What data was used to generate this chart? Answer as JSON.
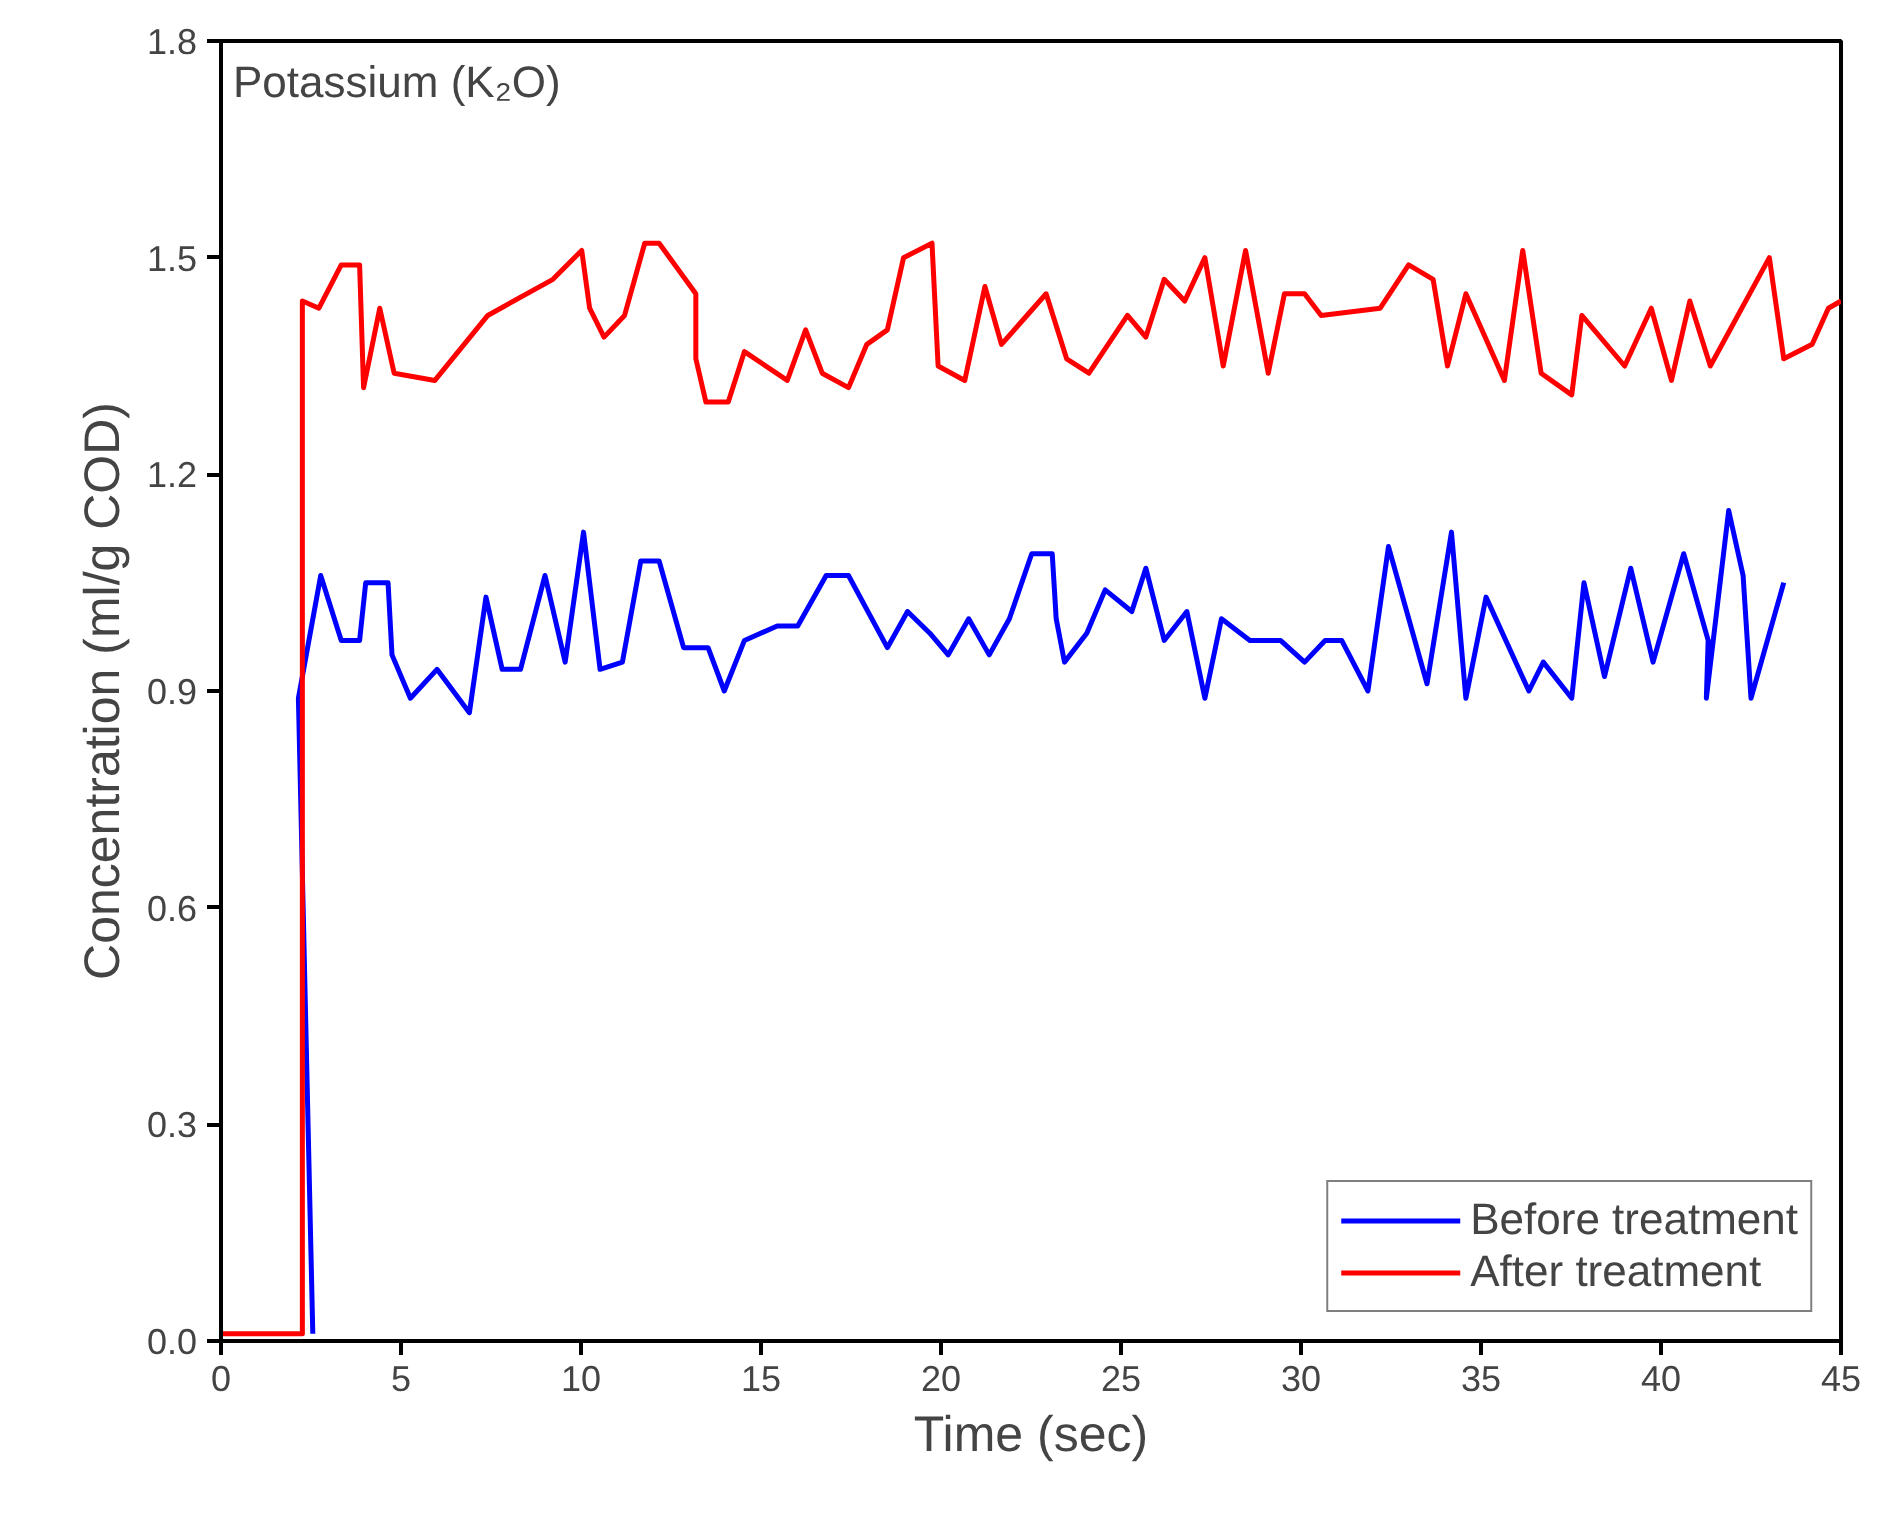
{
  "chart_data": {
    "type": "line",
    "title": "Potassium (K₂O)",
    "xlabel": "Time (sec)",
    "ylabel": "Concentration (ml/g COD)",
    "xlim": [
      0,
      45
    ],
    "xticks": [
      0,
      5,
      10,
      15,
      20,
      25,
      30,
      35,
      40,
      45
    ],
    "ylim": [
      0,
      1.8
    ],
    "yticks": [
      {
        "value": 0,
        "label": "0.0"
      },
      {
        "value": 0.3,
        "label": "0.3"
      },
      {
        "value": 0.6,
        "label": "0.6"
      },
      {
        "value": 0.9,
        "label": "0.9"
      },
      {
        "value": 1.2,
        "label": "1.2"
      },
      {
        "value": 1.5,
        "label": "1.5"
      },
      {
        "value": 1.8,
        "label": "1.8"
      }
    ],
    "grid": false,
    "legend": "bottom right",
    "line_style": "solid",
    "series": [
      {
        "name": "Before treatment",
        "color": "#0000ff",
        "x": [
          2.55,
          2.15,
          2.77,
          3.34,
          3.85,
          4.02,
          4.64,
          4.75,
          5.26,
          6.0,
          6.9,
          7.36,
          7.81,
          8.32,
          9.0,
          9.56,
          10.07,
          10.53,
          11.15,
          11.66,
          12.17,
          12.85,
          13.53,
          13.98,
          14.54,
          15.45,
          16.02,
          16.81,
          17.43,
          18.51,
          19.07,
          19.69,
          20.2,
          20.77,
          21.34,
          21.9,
          22.52,
          23.09,
          23.2,
          23.43,
          24.05,
          24.56,
          25.3,
          25.69,
          26.2,
          26.83,
          27.33,
          27.79,
          28.58,
          29.43,
          30.1,
          30.67,
          31.13,
          31.86,
          32.43,
          33.5,
          34.18,
          34.58,
          35.14,
          36.33,
          36.73,
          37.52,
          37.86,
          38.43,
          39.16,
          39.78,
          40.63,
          41.31,
          41.26,
          41.88,
          42.28,
          42.5,
          43.41
        ],
        "values": [
          0.01,
          0.89,
          1.06,
          0.97,
          0.97,
          1.05,
          1.05,
          0.95,
          0.89,
          0.93,
          0.87,
          1.03,
          0.93,
          0.93,
          1.06,
          0.94,
          1.12,
          0.93,
          0.94,
          1.08,
          1.08,
          0.96,
          0.96,
          0.9,
          0.97,
          0.99,
          0.99,
          1.06,
          1.06,
          0.96,
          1.01,
          0.98,
          0.95,
          1.0,
          0.95,
          1.0,
          1.09,
          1.09,
          1.0,
          0.94,
          0.98,
          1.04,
          1.01,
          1.07,
          0.97,
          1.01,
          0.89,
          1.0,
          0.97,
          0.97,
          0.94,
          0.97,
          0.97,
          0.9,
          1.1,
          0.91,
          1.12,
          0.89,
          1.03,
          0.9,
          0.94,
          0.89,
          1.05,
          0.92,
          1.07,
          0.94,
          1.09,
          0.97,
          0.89,
          1.15,
          1.06,
          0.89,
          1.05
        ]
      },
      {
        "name": "After treatment",
        "color": "#ff0000",
        "x": [
          0,
          2.26,
          2.26,
          2.72,
          3.34,
          3.85,
          3.96,
          4.41,
          4.81,
          5.94,
          7.41,
          9.22,
          10.02,
          10.24,
          10.64,
          11.21,
          11.77,
          12.17,
          13.19,
          13.19,
          13.47,
          14.09,
          14.54,
          15.73,
          16.24,
          16.7,
          17.43,
          17.94,
          18.51,
          18.96,
          19.75,
          19.92,
          20.66,
          21.22,
          21.68,
          22.92,
          23.49,
          24.11,
          25.18,
          25.69,
          26.2,
          26.77,
          27.33,
          27.84,
          28.46,
          29.09,
          29.54,
          30.1,
          30.56,
          32.2,
          32.99,
          33.67,
          34.07,
          34.58,
          35.65,
          36.16,
          36.67,
          37.52,
          37.8,
          38.99,
          39.73,
          40.29,
          40.8,
          41.37,
          43.01,
          43.41,
          44.2,
          44.65,
          45
        ],
        "values": [
          0.01,
          0.01,
          1.44,
          1.43,
          1.49,
          1.49,
          1.32,
          1.43,
          1.34,
          1.33,
          1.42,
          1.47,
          1.51,
          1.43,
          1.39,
          1.42,
          1.52,
          1.52,
          1.45,
          1.36,
          1.3,
          1.3,
          1.37,
          1.33,
          1.4,
          1.34,
          1.32,
          1.38,
          1.4,
          1.5,
          1.52,
          1.35,
          1.33,
          1.46,
          1.38,
          1.45,
          1.36,
          1.34,
          1.42,
          1.39,
          1.47,
          1.44,
          1.5,
          1.35,
          1.51,
          1.34,
          1.45,
          1.45,
          1.42,
          1.43,
          1.49,
          1.47,
          1.35,
          1.45,
          1.33,
          1.51,
          1.34,
          1.31,
          1.42,
          1.35,
          1.43,
          1.33,
          1.44,
          1.35,
          1.5,
          1.36,
          1.38,
          1.43,
          1.44
        ]
      }
    ]
  }
}
